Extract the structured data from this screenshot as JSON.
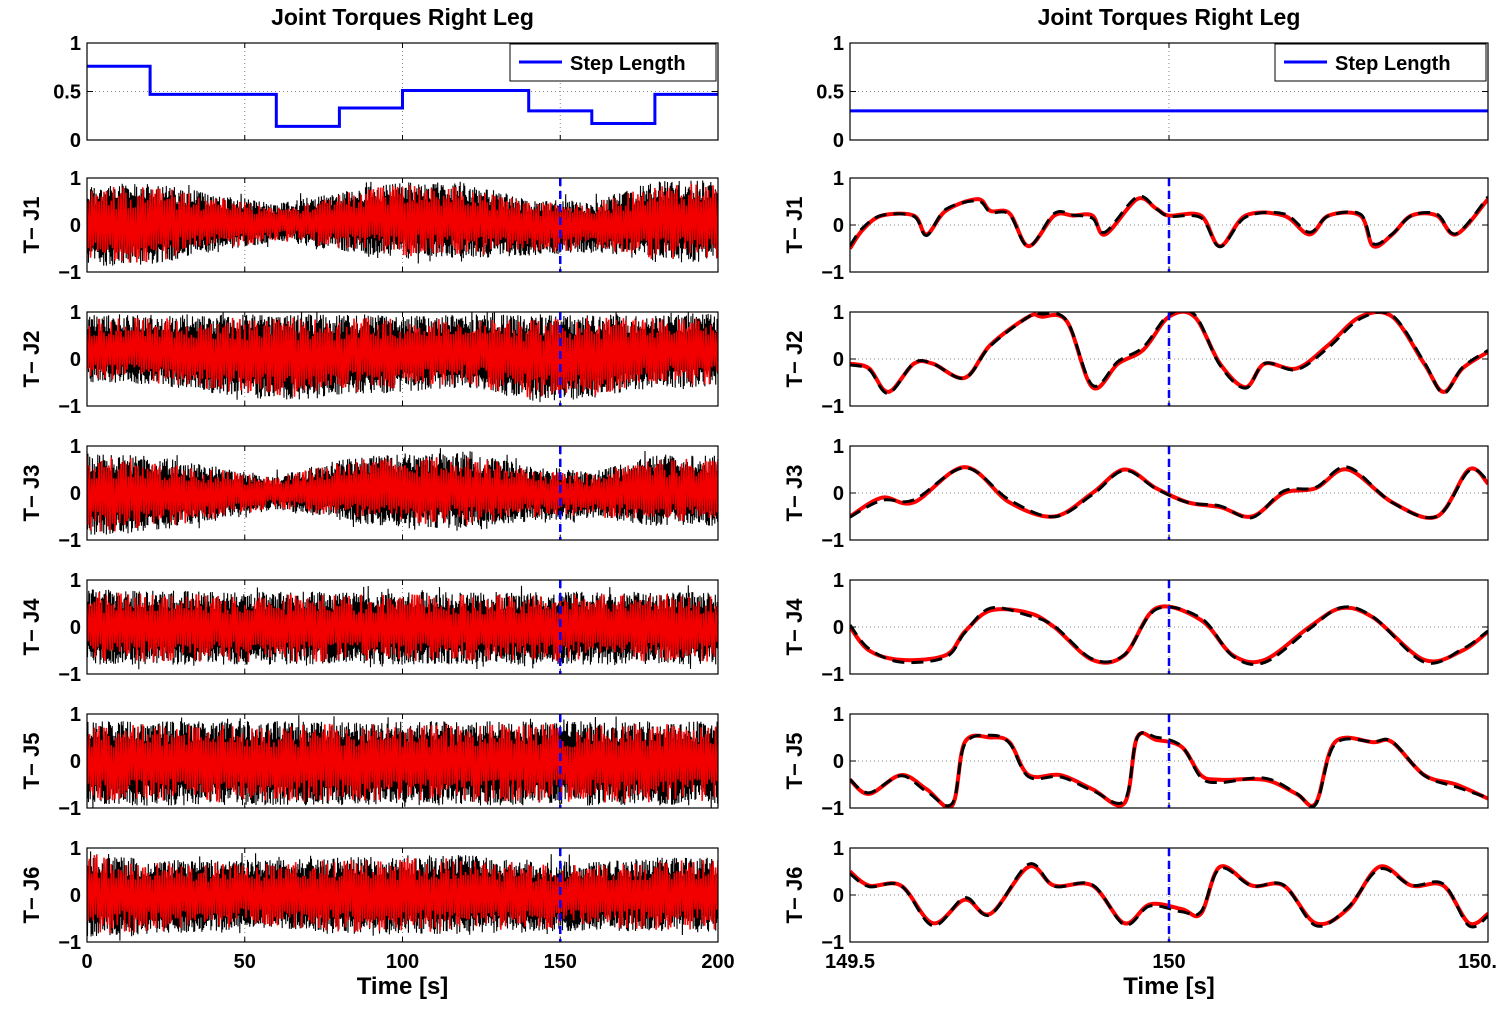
{
  "chart_data": [
    {
      "type": "line",
      "panel": "left-step",
      "title": "Joint Torques Right Leg",
      "ylabel": "",
      "xlabel": "",
      "xlim": [
        0,
        200
      ],
      "ylim": [
        0,
        1
      ],
      "yticks": [
        "0",
        "0.5",
        "1"
      ],
      "grid": true,
      "legend": "top-right",
      "series": [
        {
          "name": "Step Length",
          "color": "#0000ff",
          "step": true,
          "x": [
            0,
            20,
            20,
            60,
            60,
            80,
            80,
            100,
            100,
            140,
            140,
            160,
            160,
            180,
            180,
            200
          ],
          "y": [
            0.76,
            0.76,
            0.47,
            0.47,
            0.14,
            0.14,
            0.33,
            0.33,
            0.51,
            0.51,
            0.3,
            0.3,
            0.17,
            0.17,
            0.47,
            0.47
          ]
        }
      ]
    },
    {
      "type": "line",
      "panel": "left-joint",
      "ylabel": "T− J1",
      "xlim": [
        0,
        200
      ],
      "ylim": [
        -1,
        1
      ],
      "yticks": [
        "−1",
        "0",
        "1"
      ],
      "grid": true,
      "marker_x": 150,
      "series": [
        {
          "color": "#000000",
          "dashed": true
        },
        {
          "color": "#ff0000"
        }
      ],
      "envelope": {
        "x": [
          0,
          20,
          60,
          80,
          100,
          120,
          140,
          160,
          180,
          200
        ],
        "upper": [
          0.85,
          0.9,
          0.45,
          0.72,
          0.95,
          0.9,
          0.55,
          0.5,
          0.95,
          0.95
        ],
        "lower": [
          -0.88,
          -0.85,
          -0.35,
          -0.55,
          -0.72,
          -0.72,
          -0.65,
          -0.58,
          -0.8,
          -0.8
        ]
      }
    },
    {
      "type": "line",
      "panel": "left-joint",
      "ylabel": "T− J2",
      "xlim": [
        0,
        200
      ],
      "ylim": [
        -1,
        1
      ],
      "yticks": [
        "−1",
        "0",
        "1"
      ],
      "grid": true,
      "marker_x": 150,
      "series": [
        {
          "color": "#000000",
          "dashed": true
        },
        {
          "color": "#ff0000"
        }
      ],
      "envelope": {
        "x": [
          0,
          20,
          60,
          80,
          100,
          120,
          140,
          160,
          180,
          200
        ],
        "upper": [
          0.95,
          0.95,
          0.95,
          0.95,
          0.95,
          0.95,
          0.95,
          0.95,
          0.95,
          0.95
        ],
        "lower": [
          -0.5,
          -0.55,
          -0.9,
          -0.8,
          -0.7,
          -0.6,
          -0.9,
          -0.85,
          -0.6,
          -0.6
        ]
      }
    },
    {
      "type": "line",
      "panel": "left-joint",
      "ylabel": "T− J3",
      "xlim": [
        0,
        200
      ],
      "ylim": [
        -1,
        1
      ],
      "yticks": [
        "−1",
        "0",
        "1"
      ],
      "grid": true,
      "marker_x": 150,
      "series": [
        {
          "color": "#000000",
          "dashed": true
        },
        {
          "color": "#ff0000"
        }
      ],
      "envelope": {
        "x": [
          0,
          20,
          60,
          80,
          100,
          120,
          140,
          160,
          180,
          200
        ],
        "upper": [
          0.85,
          0.8,
          0.35,
          0.72,
          0.85,
          0.85,
          0.6,
          0.45,
          0.8,
          0.8
        ],
        "lower": [
          -0.9,
          -0.85,
          -0.35,
          -0.6,
          -0.75,
          -0.75,
          -0.6,
          -0.55,
          -0.7,
          -0.7
        ]
      }
    },
    {
      "type": "line",
      "panel": "left-joint",
      "ylabel": "T− J4",
      "xlim": [
        0,
        200
      ],
      "ylim": [
        -1,
        1
      ],
      "yticks": [
        "−1",
        "0",
        "1"
      ],
      "grid": true,
      "marker_x": 150,
      "series": [
        {
          "color": "#000000",
          "dashed": true
        },
        {
          "color": "#ff0000"
        }
      ],
      "envelope": {
        "x": [
          0,
          50,
          100,
          150,
          200
        ],
        "upper": [
          0.8,
          0.75,
          0.75,
          0.75,
          0.75
        ],
        "lower": [
          -0.8,
          -0.8,
          -0.8,
          -0.8,
          -0.8
        ]
      }
    },
    {
      "type": "line",
      "panel": "left-joint",
      "ylabel": "T− J5",
      "xlim": [
        0,
        200
      ],
      "ylim": [
        -1,
        1
      ],
      "yticks": [
        "−1",
        "0",
        "1"
      ],
      "grid": true,
      "marker_x": 150,
      "series": [
        {
          "color": "#000000",
          "dashed": true
        },
        {
          "color": "#ff0000"
        }
      ],
      "envelope": {
        "x": [
          0,
          50,
          100,
          150,
          200
        ],
        "upper": [
          0.85,
          0.85,
          0.85,
          0.85,
          0.85
        ],
        "lower": [
          -0.95,
          -0.95,
          -0.95,
          -0.95,
          -0.95
        ]
      }
    },
    {
      "type": "line",
      "panel": "left-joint",
      "ylabel": "T− J6",
      "xlim": [
        0,
        200
      ],
      "ylim": [
        -1,
        1
      ],
      "yticks": [
        "−1",
        "0",
        "1"
      ],
      "grid": true,
      "marker_x": 150,
      "xlabel": "Time [s]",
      "xticks": [
        "0",
        "50",
        "100",
        "150",
        "200"
      ],
      "series": [
        {
          "color": "#000000",
          "dashed": true
        },
        {
          "color": "#ff0000"
        }
      ],
      "envelope": {
        "x": [
          0,
          20,
          60,
          80,
          100,
          120,
          140,
          160,
          180,
          200
        ],
        "upper": [
          0.95,
          0.75,
          0.75,
          0.8,
          0.85,
          0.85,
          0.75,
          0.7,
          0.8,
          0.8
        ],
        "lower": [
          -0.9,
          -0.85,
          -0.7,
          -0.85,
          -0.85,
          -0.85,
          -0.8,
          -0.75,
          -0.8,
          -0.8
        ]
      }
    },
    {
      "type": "line",
      "panel": "right-step",
      "title": "Joint Torques Right Leg",
      "xlim": [
        149.5,
        150.5
      ],
      "ylim": [
        0,
        1
      ],
      "yticks": [
        "0",
        "0.5",
        "1"
      ],
      "grid": true,
      "legend": "top-right",
      "series": [
        {
          "name": "Step Length",
          "color": "#0000ff",
          "x": [
            149.5,
            150.5
          ],
          "y": [
            0.3,
            0.3
          ]
        }
      ]
    },
    {
      "type": "line",
      "panel": "right-joint",
      "ylabel": "T− J1",
      "xlim": [
        149.5,
        150.5
      ],
      "ylim": [
        -1,
        1
      ],
      "yticks": [
        "−1",
        "0",
        "1"
      ],
      "grid": true,
      "marker_x": 150,
      "series": [
        {
          "color": "#000000",
          "dashed": true
        },
        {
          "color": "#ff0000"
        }
      ],
      "x": [
        149.5,
        149.52,
        149.55,
        149.6,
        149.62,
        149.65,
        149.7,
        149.72,
        149.75,
        149.78,
        149.82,
        149.85,
        149.88,
        149.9,
        149.95,
        149.98,
        150.0,
        150.05,
        150.08,
        150.12,
        150.18,
        150.22,
        150.25,
        150.3,
        150.32,
        150.35,
        150.38,
        150.42,
        150.45,
        150.5
      ],
      "y": [
        -0.5,
        -0.1,
        0.2,
        0.2,
        -0.2,
        0.3,
        0.55,
        0.3,
        0.25,
        -0.45,
        0.2,
        0.2,
        0.2,
        -0.2,
        0.55,
        0.35,
        0.2,
        0.2,
        -0.45,
        0.2,
        0.2,
        -0.2,
        0.2,
        0.2,
        -0.45,
        -0.2,
        0.2,
        0.2,
        -0.2,
        0.55
      ]
    },
    {
      "type": "line",
      "panel": "right-joint",
      "ylabel": "T− J2",
      "xlim": [
        149.5,
        150.5
      ],
      "ylim": [
        -1,
        1
      ],
      "yticks": [
        "−1",
        "0",
        "1"
      ],
      "grid": true,
      "marker_x": 150,
      "series": [
        {
          "color": "#000000",
          "dashed": true
        },
        {
          "color": "#ff0000"
        }
      ],
      "x": [
        149.5,
        149.53,
        149.56,
        149.6,
        149.63,
        149.68,
        149.72,
        149.78,
        149.8,
        149.84,
        149.88,
        149.92,
        149.96,
        150.0,
        150.04,
        150.08,
        150.12,
        150.15,
        150.2,
        150.25,
        150.3,
        150.35,
        150.4,
        150.43,
        150.46,
        150.5
      ],
      "y": [
        -0.1,
        -0.2,
        -0.7,
        -0.1,
        -0.1,
        -0.4,
        0.3,
        0.9,
        0.9,
        0.8,
        -0.6,
        -0.1,
        0.2,
        0.9,
        0.9,
        -0.1,
        -0.6,
        -0.1,
        -0.2,
        0.3,
        0.9,
        0.9,
        -0.1,
        -0.7,
        -0.2,
        0.15
      ]
    },
    {
      "type": "line",
      "panel": "right-joint",
      "ylabel": "T− J3",
      "xlim": [
        149.5,
        150.5
      ],
      "ylim": [
        -1,
        1
      ],
      "yticks": [
        "−1",
        "0",
        "1"
      ],
      "grid": true,
      "marker_x": 150,
      "series": [
        {
          "color": "#000000",
          "dashed": true
        },
        {
          "color": "#ff0000"
        }
      ],
      "x": [
        149.5,
        149.55,
        149.6,
        149.68,
        149.75,
        149.82,
        149.88,
        149.93,
        149.98,
        150.03,
        150.08,
        150.13,
        150.18,
        150.23,
        150.28,
        150.35,
        150.42,
        150.47,
        150.5
      ],
      "y": [
        -0.5,
        -0.1,
        -0.2,
        0.55,
        -0.2,
        -0.5,
        0.0,
        0.5,
        0.1,
        -0.2,
        -0.3,
        -0.5,
        0.0,
        0.1,
        0.5,
        -0.2,
        -0.5,
        0.5,
        0.2
      ]
    },
    {
      "type": "line",
      "panel": "right-joint",
      "ylabel": "T− J4",
      "xlim": [
        149.5,
        150.5
      ],
      "ylim": [
        -1,
        1
      ],
      "yticks": [
        "−1",
        "0",
        "1"
      ],
      "grid": true,
      "marker_x": 150,
      "series": [
        {
          "color": "#000000",
          "dashed": true
        },
        {
          "color": "#ff0000"
        }
      ],
      "x": [
        149.5,
        149.53,
        149.58,
        149.65,
        149.68,
        149.72,
        149.78,
        149.82,
        149.88,
        149.93,
        149.98,
        150.05,
        150.1,
        150.15,
        150.22,
        150.27,
        150.32,
        150.4,
        150.46,
        150.5
      ],
      "y": [
        0.0,
        -0.5,
        -0.7,
        -0.6,
        -0.1,
        0.35,
        0.3,
        0.0,
        -0.7,
        -0.6,
        0.4,
        0.15,
        -0.6,
        -0.7,
        0.0,
        0.4,
        0.2,
        -0.7,
        -0.5,
        -0.1
      ]
    },
    {
      "type": "line",
      "panel": "right-joint",
      "ylabel": "T− J5",
      "xlim": [
        149.5,
        150.5
      ],
      "ylim": [
        -1,
        1
      ],
      "yticks": [
        "−1",
        "0",
        "1"
      ],
      "grid": true,
      "marker_x": 150,
      "series": [
        {
          "color": "#000000",
          "dashed": true
        },
        {
          "color": "#ff0000"
        }
      ],
      "x": [
        149.5,
        149.53,
        149.58,
        149.62,
        149.66,
        149.68,
        149.72,
        149.75,
        149.78,
        149.83,
        149.88,
        149.93,
        149.95,
        149.98,
        150.02,
        150.05,
        150.08,
        150.15,
        150.2,
        150.23,
        150.26,
        150.32,
        150.35,
        150.4,
        150.45,
        150.5
      ],
      "y": [
        -0.4,
        -0.7,
        -0.3,
        -0.6,
        -0.95,
        0.4,
        0.5,
        0.4,
        -0.3,
        -0.3,
        -0.6,
        -0.9,
        0.5,
        0.45,
        0.3,
        -0.3,
        -0.4,
        -0.4,
        -0.7,
        -0.9,
        0.4,
        0.4,
        0.4,
        -0.3,
        -0.5,
        -0.8
      ]
    },
    {
      "type": "line",
      "panel": "right-joint",
      "ylabel": "T− J6",
      "xlim": [
        149.5,
        150.5
      ],
      "ylim": [
        -1,
        1
      ],
      "yticks": [
        "−1",
        "0",
        "1"
      ],
      "grid": true,
      "marker_x": 150,
      "xlabel": "Time [s]",
      "xticks": [
        "149.5",
        "150",
        "150."
      ],
      "series": [
        {
          "color": "#000000",
          "dashed": true
        },
        {
          "color": "#ff0000"
        }
      ],
      "x": [
        149.5,
        149.53,
        149.58,
        149.63,
        149.68,
        149.72,
        149.78,
        149.82,
        149.88,
        149.93,
        149.97,
        150.02,
        150.05,
        150.08,
        150.13,
        150.18,
        150.23,
        150.28,
        150.33,
        150.38,
        150.43,
        150.47,
        150.5
      ],
      "y": [
        0.5,
        0.2,
        0.2,
        -0.6,
        -0.1,
        -0.4,
        0.6,
        0.2,
        0.2,
        -0.6,
        -0.2,
        -0.3,
        -0.4,
        0.6,
        0.2,
        0.2,
        -0.6,
        -0.3,
        0.6,
        0.2,
        0.2,
        -0.6,
        -0.4
      ]
    }
  ]
}
